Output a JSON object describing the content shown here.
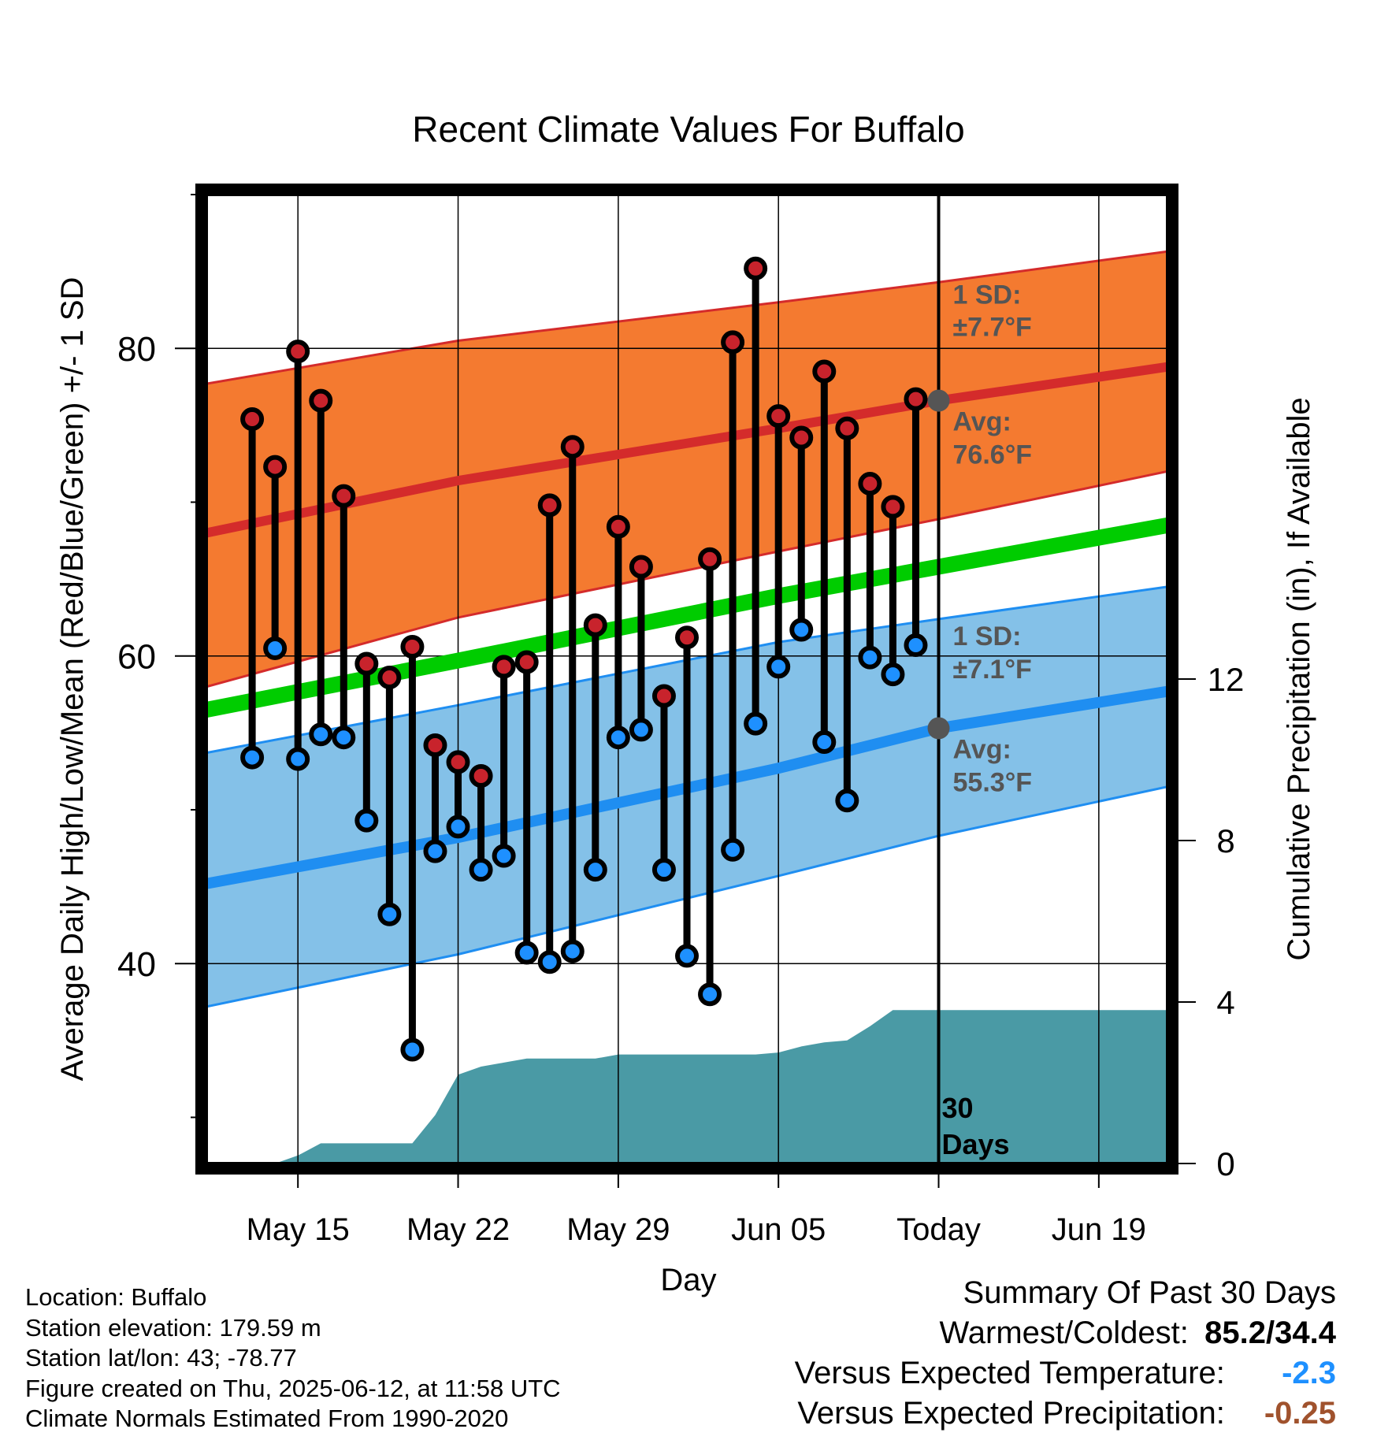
{
  "chart_data": {
    "type": "line",
    "title": "Recent Climate Values For Buffalo",
    "xlabel": "Day",
    "ylabel": "Average Daily High/Low/Mean (Red/Blue/Green) +/- 1 SD",
    "y2label": "Cumulative Precipitation (in), If Available",
    "ylim": [
      27,
      90
    ],
    "y2lim": [
      0,
      24
    ],
    "xlim": [
      "2025-05-11",
      "2025-06-22"
    ],
    "yticks": [
      40,
      60,
      80
    ],
    "y2ticks": [
      0,
      4,
      8,
      12
    ],
    "xticks": [
      {
        "date": "2025-05-15",
        "label": "May 15"
      },
      {
        "date": "2025-05-22",
        "label": "May 22"
      },
      {
        "date": "2025-05-29",
        "label": "May 29"
      },
      {
        "date": "2025-06-05",
        "label": "Jun 05"
      },
      {
        "date": "2025-06-12",
        "label": "Today"
      },
      {
        "date": "2025-06-19",
        "label": "Jun 19"
      }
    ],
    "today": "2025-06-12",
    "colors": {
      "high_band": "#f47a30",
      "high_line": "#d42b2b",
      "low_band": "#84c1e8",
      "low_line": "#1f8ef1",
      "mean_line": "#00cc00",
      "precip": "#4a9aa5",
      "high_dot": "#c8232c",
      "low_dot": "#1e90ff",
      "temp_anomaly": "#1e90ff",
      "precip_anomaly": "#a0522d"
    },
    "normals": {
      "x": [
        "2025-05-11",
        "2025-05-22",
        "2025-06-05",
        "2025-06-12",
        "2025-06-22"
      ],
      "high_avg": [
        68.0,
        71.4,
        74.8,
        76.6,
        78.8
      ],
      "high_upper": [
        77.7,
        80.5,
        83.0,
        84.3,
        86.3
      ],
      "high_lower": [
        58.0,
        62.5,
        66.8,
        68.9,
        72.0
      ],
      "mean": [
        56.5,
        59.7,
        63.9,
        65.8,
        68.5
      ],
      "low_avg": [
        45.2,
        48.2,
        52.7,
        55.3,
        57.7
      ],
      "low_upper": [
        53.7,
        56.8,
        60.9,
        62.4,
        64.5
      ],
      "low_lower": [
        37.2,
        40.6,
        45.7,
        48.3,
        51.5
      ]
    },
    "observed": {
      "x": [
        "2025-05-13",
        "2025-05-14",
        "2025-05-15",
        "2025-05-16",
        "2025-05-17",
        "2025-05-18",
        "2025-05-19",
        "2025-05-20",
        "2025-05-21",
        "2025-05-22",
        "2025-05-23",
        "2025-05-24",
        "2025-05-25",
        "2025-05-26",
        "2025-05-27",
        "2025-05-28",
        "2025-05-29",
        "2025-05-30",
        "2025-05-31",
        "2025-06-01",
        "2025-06-02",
        "2025-06-03",
        "2025-06-04",
        "2025-06-05",
        "2025-06-06",
        "2025-06-07",
        "2025-06-08",
        "2025-06-09",
        "2025-06-10",
        "2025-06-11"
      ],
      "high": [
        75.4,
        72.3,
        79.8,
        76.6,
        70.4,
        59.5,
        58.6,
        60.6,
        54.2,
        53.1,
        52.2,
        59.3,
        59.6,
        69.8,
        73.6,
        62.0,
        68.4,
        65.8,
        57.4,
        61.2,
        66.3,
        80.4,
        85.2,
        75.6,
        74.2,
        78.5,
        74.8,
        71.2,
        69.7,
        76.7
      ],
      "low": [
        53.4,
        60.5,
        53.3,
        54.9,
        54.7,
        49.3,
        43.2,
        34.4,
        47.3,
        48.9,
        46.1,
        47.0,
        40.7,
        40.1,
        40.8,
        46.1,
        54.7,
        55.2,
        46.1,
        40.5,
        38.0,
        47.4,
        55.6,
        59.3,
        61.7,
        54.4,
        50.6,
        59.9,
        58.8,
        60.7
      ]
    },
    "precip": {
      "x": [
        "2025-05-11",
        "2025-05-14",
        "2025-05-15",
        "2025-05-16",
        "2025-05-20",
        "2025-05-21",
        "2025-05-22",
        "2025-05-23",
        "2025-05-24",
        "2025-05-25",
        "2025-05-26",
        "2025-05-28",
        "2025-05-29",
        "2025-06-04",
        "2025-06-05",
        "2025-06-06",
        "2025-06-07",
        "2025-06-08",
        "2025-06-09",
        "2025-06-10",
        "2025-06-11",
        "2025-06-12",
        "2025-06-22"
      ],
      "y": [
        0,
        0,
        0.2,
        0.5,
        0.5,
        1.2,
        2.2,
        2.4,
        2.5,
        2.6,
        2.6,
        2.6,
        2.7,
        2.7,
        2.75,
        2.9,
        3.0,
        3.05,
        3.4,
        3.8,
        3.8,
        3.8,
        3.8
      ]
    },
    "annotations": {
      "high_sd": "1 SD:",
      "high_sd_val": "±7.7°F",
      "high_avg": "Avg:",
      "high_avg_val": "76.6°F",
      "low_sd": "1 SD:",
      "low_sd_val": "±7.1°F",
      "low_avg": "Avg:",
      "low_avg_val": "55.3°F",
      "days_num": "30",
      "days_word": "Days"
    }
  },
  "footer": {
    "location": "Location: Buffalo",
    "elevation": "Station elevation: 179.59 m",
    "latlon": "Station lat/lon: 43; -78.77",
    "created": "Figure created on Thu, 2025-06-12, at 11:58 UTC",
    "normals": "Climate Normals Estimated From 1990-2020"
  },
  "summary": {
    "heading": "Summary Of Past 30 Days",
    "warmest_label": "Warmest/Coldest:",
    "warmest_value": "85.2/34.4",
    "temp_label": "Versus Expected Temperature:",
    "temp_value": "-2.3",
    "precip_label": "Versus Expected Precipitation:",
    "precip_value": "-0.25"
  }
}
